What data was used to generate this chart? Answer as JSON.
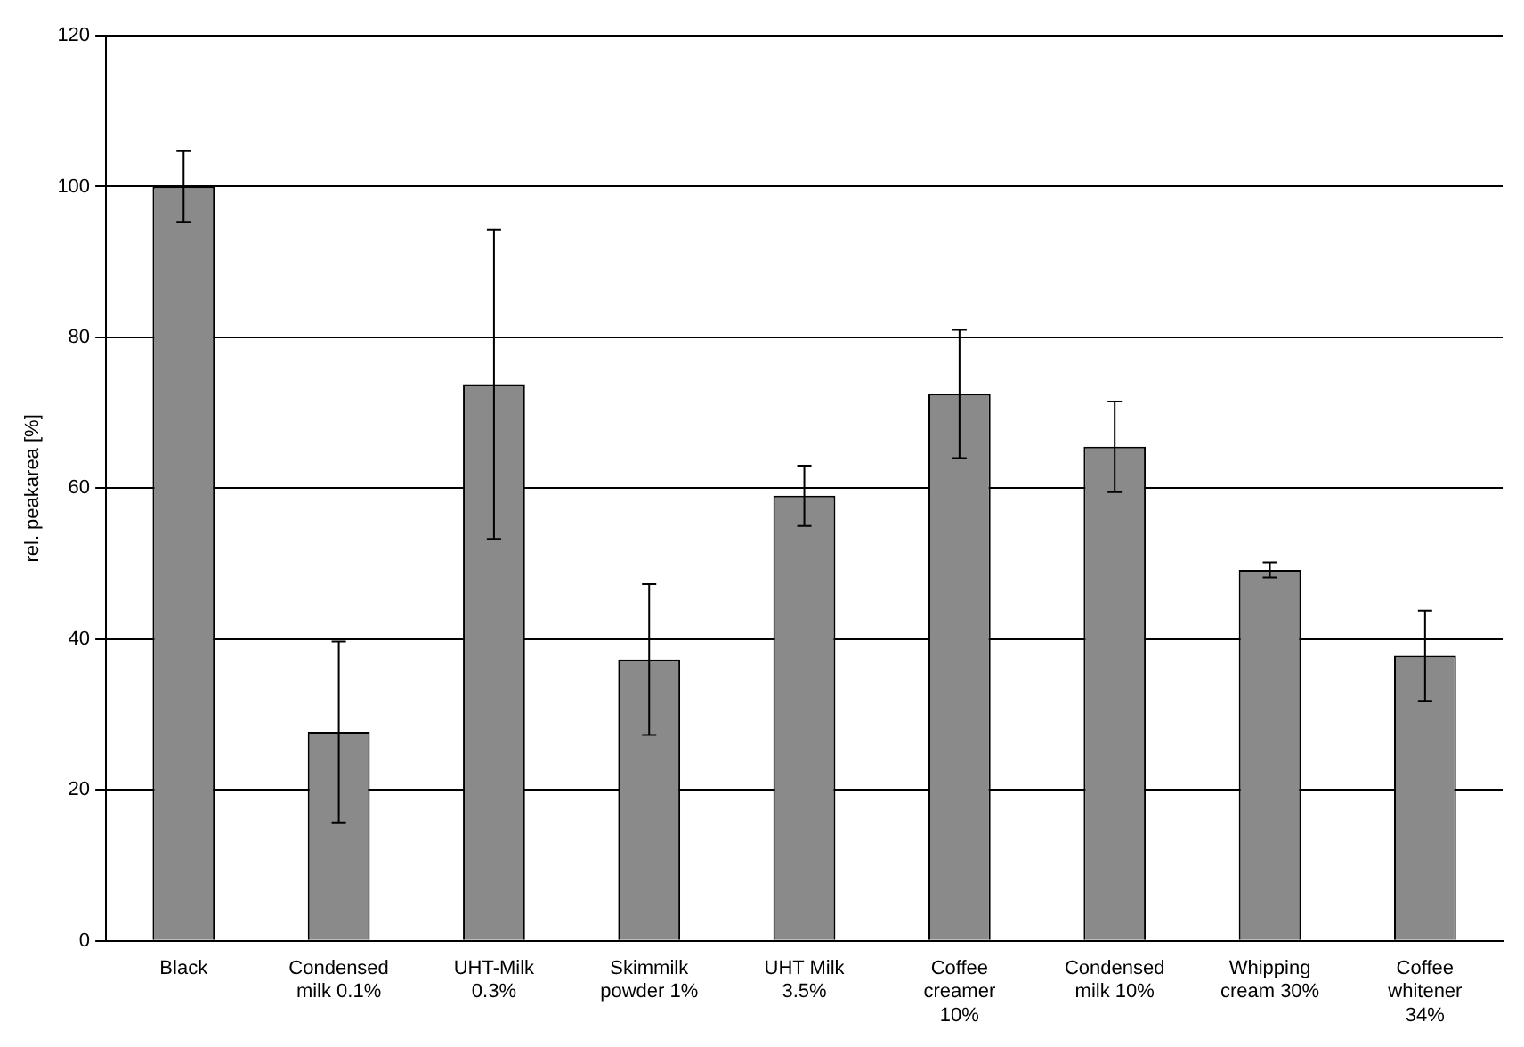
{
  "chart_data": {
    "type": "bar",
    "ylabel": "rel. peakarea [%]",
    "categories": [
      "Black",
      "Condensed milk 0.1%",
      "UHT-Milk 0.3%",
      "Skimmilk powder 1%",
      "UHT Milk 3.5%",
      "Coffee creamer 10%",
      "Condensed milk 10%",
      "Whipping cream 30%",
      "Coffee whitener 34%"
    ],
    "values": [
      100,
      27.7,
      73.8,
      37.3,
      59,
      72.5,
      65.5,
      49.2,
      37.8
    ],
    "errors": [
      4.7,
      12,
      20.5,
      10,
      4,
      8.5,
      6,
      1,
      6
    ],
    "color": "#8a8a8a",
    "ylim": [
      0,
      120
    ],
    "yticks": [
      0,
      20,
      40,
      60,
      80,
      100,
      120
    ],
    "grid": "y",
    "legend": false
  }
}
